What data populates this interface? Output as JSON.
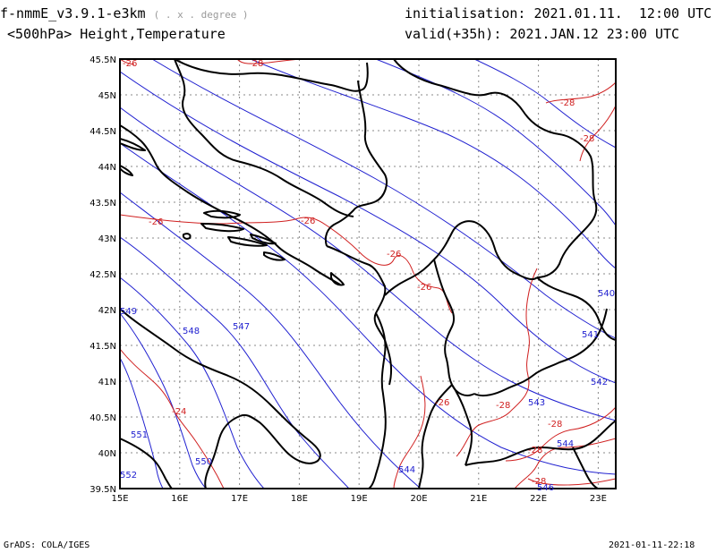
{
  "header": {
    "model_title": "f-nmmE_v3.9.1-e3km",
    "units_hint": "( . x . degree )",
    "field_title": "<500hPa> Height,Temperature",
    "initialisation": "initialisation: 2021.01.11.  12:00 UTC",
    "valid": "valid(+35h): 2021.JAN.12 23:00 UTC"
  },
  "footer": {
    "left": "GrADS: COLA/IGES",
    "right": "2021-01-11-22:18"
  },
  "axes": {
    "lon_labels": [
      "15E",
      "16E",
      "17E",
      "18E",
      "19E",
      "20E",
      "21E",
      "22E",
      "23E"
    ],
    "lat_labels": [
      "45.5N",
      "45N",
      "44.5N",
      "44N",
      "43.5N",
      "43N",
      "42.5N",
      "42N",
      "41.5N",
      "41N",
      "40.5N",
      "40N",
      "39.5N"
    ]
  },
  "height_labels": [
    "540",
    "541",
    "542",
    "543",
    "544",
    "546",
    "547",
    "548",
    "549",
    "550",
    "551",
    "552"
  ],
  "temp_labels": [
    "-26",
    "-28",
    "-26",
    "-26",
    "-26",
    "-26",
    "-26",
    "-28",
    "-28",
    "-28",
    "-28",
    "-28",
    "-24"
  ],
  "colors": {
    "height": "#2020d0",
    "temperature": "#d02020",
    "border": "#000000",
    "grid": "#888888"
  }
}
